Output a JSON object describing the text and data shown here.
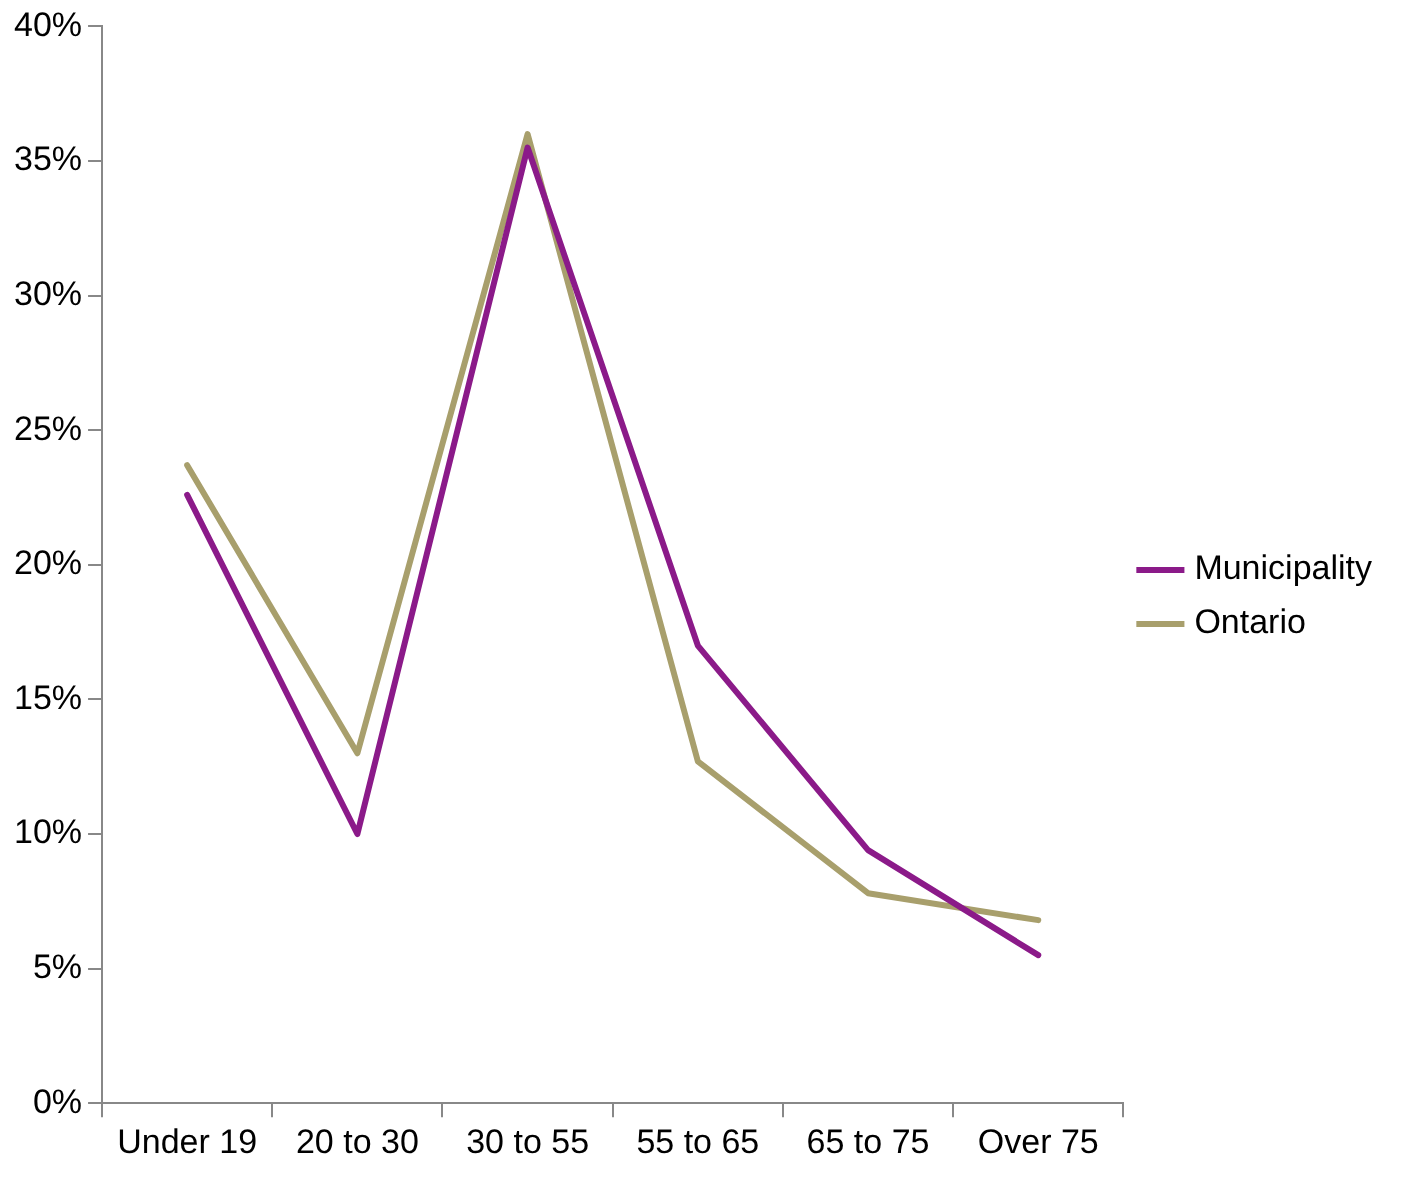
{
  "chart_data": {
    "type": "line",
    "categories": [
      "Under 19",
      "20 to 30",
      "30 to 55",
      "55 to 65",
      "65 to 75",
      "Over 75"
    ],
    "series": [
      {
        "name": "Municipality",
        "color": "#8b1a89",
        "values": [
          22.6,
          10.0,
          35.5,
          17.0,
          9.4,
          5.5
        ]
      },
      {
        "name": "Ontario",
        "color": "#a89f6c",
        "values": [
          23.7,
          13.0,
          36.0,
          12.7,
          7.8,
          6.8
        ]
      }
    ],
    "ylim": [
      0,
      40
    ],
    "yticks": [
      {
        "value": 0,
        "label": "0%"
      },
      {
        "value": 5,
        "label": "5%"
      },
      {
        "value": 10,
        "label": "10%"
      },
      {
        "value": 15,
        "label": "15%"
      },
      {
        "value": 20,
        "label": "20%"
      },
      {
        "value": 25,
        "label": "25%"
      },
      {
        "value": 30,
        "label": "30%"
      },
      {
        "value": 35,
        "label": "35%"
      },
      {
        "value": 40,
        "label": "40%"
      }
    ],
    "grid": false,
    "legend": "right",
    "marker": "none",
    "line_style": "solid"
  }
}
